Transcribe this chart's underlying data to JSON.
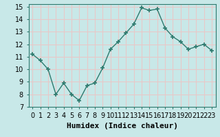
{
  "x": [
    0,
    1,
    2,
    3,
    4,
    5,
    6,
    7,
    8,
    9,
    10,
    11,
    12,
    13,
    14,
    15,
    16,
    17,
    18,
    19,
    20,
    21,
    22,
    23
  ],
  "y": [
    11.2,
    10.7,
    10.0,
    8.0,
    8.9,
    8.0,
    7.5,
    8.7,
    8.9,
    10.1,
    11.6,
    12.2,
    12.9,
    13.6,
    14.9,
    14.7,
    14.8,
    13.3,
    12.6,
    12.2,
    11.6,
    11.8,
    12.0,
    11.5
  ],
  "line_color": "#2d7a6e",
  "bg_color": "#c8e8e8",
  "grid_color": "#e8c8c8",
  "xlabel": "Humidex (Indice chaleur)",
  "ylim": [
    7,
    15.2
  ],
  "xlim": [
    -0.5,
    23.5
  ],
  "yticks": [
    7,
    8,
    9,
    10,
    11,
    12,
    13,
    14,
    15
  ],
  "xtick_labels": [
    "0",
    "1",
    "2",
    "3",
    "4",
    "5",
    "6",
    "7",
    "8",
    "9",
    "10",
    "11",
    "12",
    "13",
    "14",
    "15",
    "16",
    "17",
    "18",
    "19",
    "20",
    "21",
    "22",
    "23"
  ],
  "marker": "+",
  "markersize": 4,
  "markeredgewidth": 1.2,
  "linewidth": 1.0,
  "xlabel_fontsize": 8,
  "tick_fontsize": 7
}
